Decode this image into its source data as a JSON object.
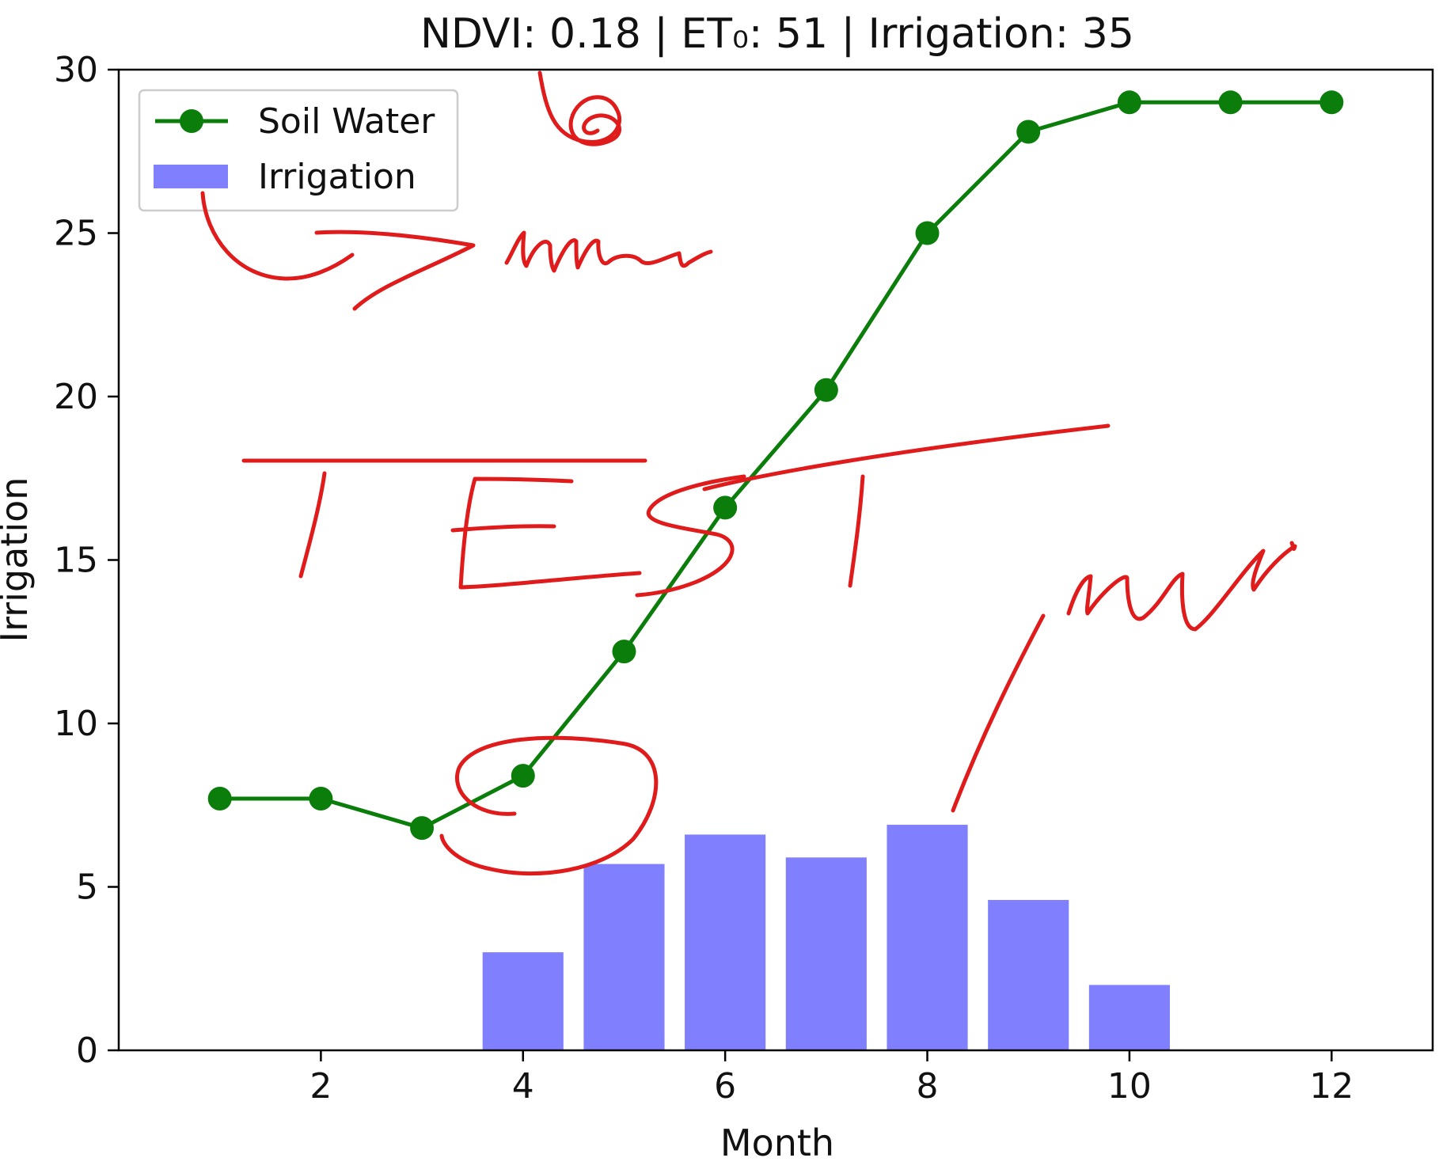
{
  "chart_data": {
    "type": "bar+line",
    "title": "NDVI: 0.18 | ET₀: 51 | Irrigation: 35",
    "xlabel": "Month",
    "ylabel": "Irrigation",
    "xlim": [
      0,
      13
    ],
    "ylim": [
      0,
      30
    ],
    "x_ticks": [
      2,
      4,
      6,
      8,
      10,
      12
    ],
    "y_ticks": [
      0,
      5,
      10,
      15,
      20,
      25,
      30
    ],
    "grid": false,
    "legend_position": "top-left",
    "months": [
      1,
      2,
      3,
      4,
      5,
      6,
      7,
      8,
      9,
      10,
      11,
      12
    ],
    "series": [
      {
        "name": "Soil Water",
        "kind": "line",
        "marker": "circle",
        "color": "#0a7d0a",
        "values": [
          7.7,
          7.7,
          6.8,
          8.4,
          12.2,
          16.6,
          20.2,
          25.0,
          28.1,
          29.0,
          29.0,
          29.0
        ]
      },
      {
        "name": "Irrigation",
        "kind": "bar",
        "color": "#8080ff",
        "values": [
          0,
          0,
          0,
          3.0,
          5.7,
          6.6,
          5.9,
          6.9,
          4.6,
          2.0,
          0,
          0
        ]
      }
    ]
  }
}
